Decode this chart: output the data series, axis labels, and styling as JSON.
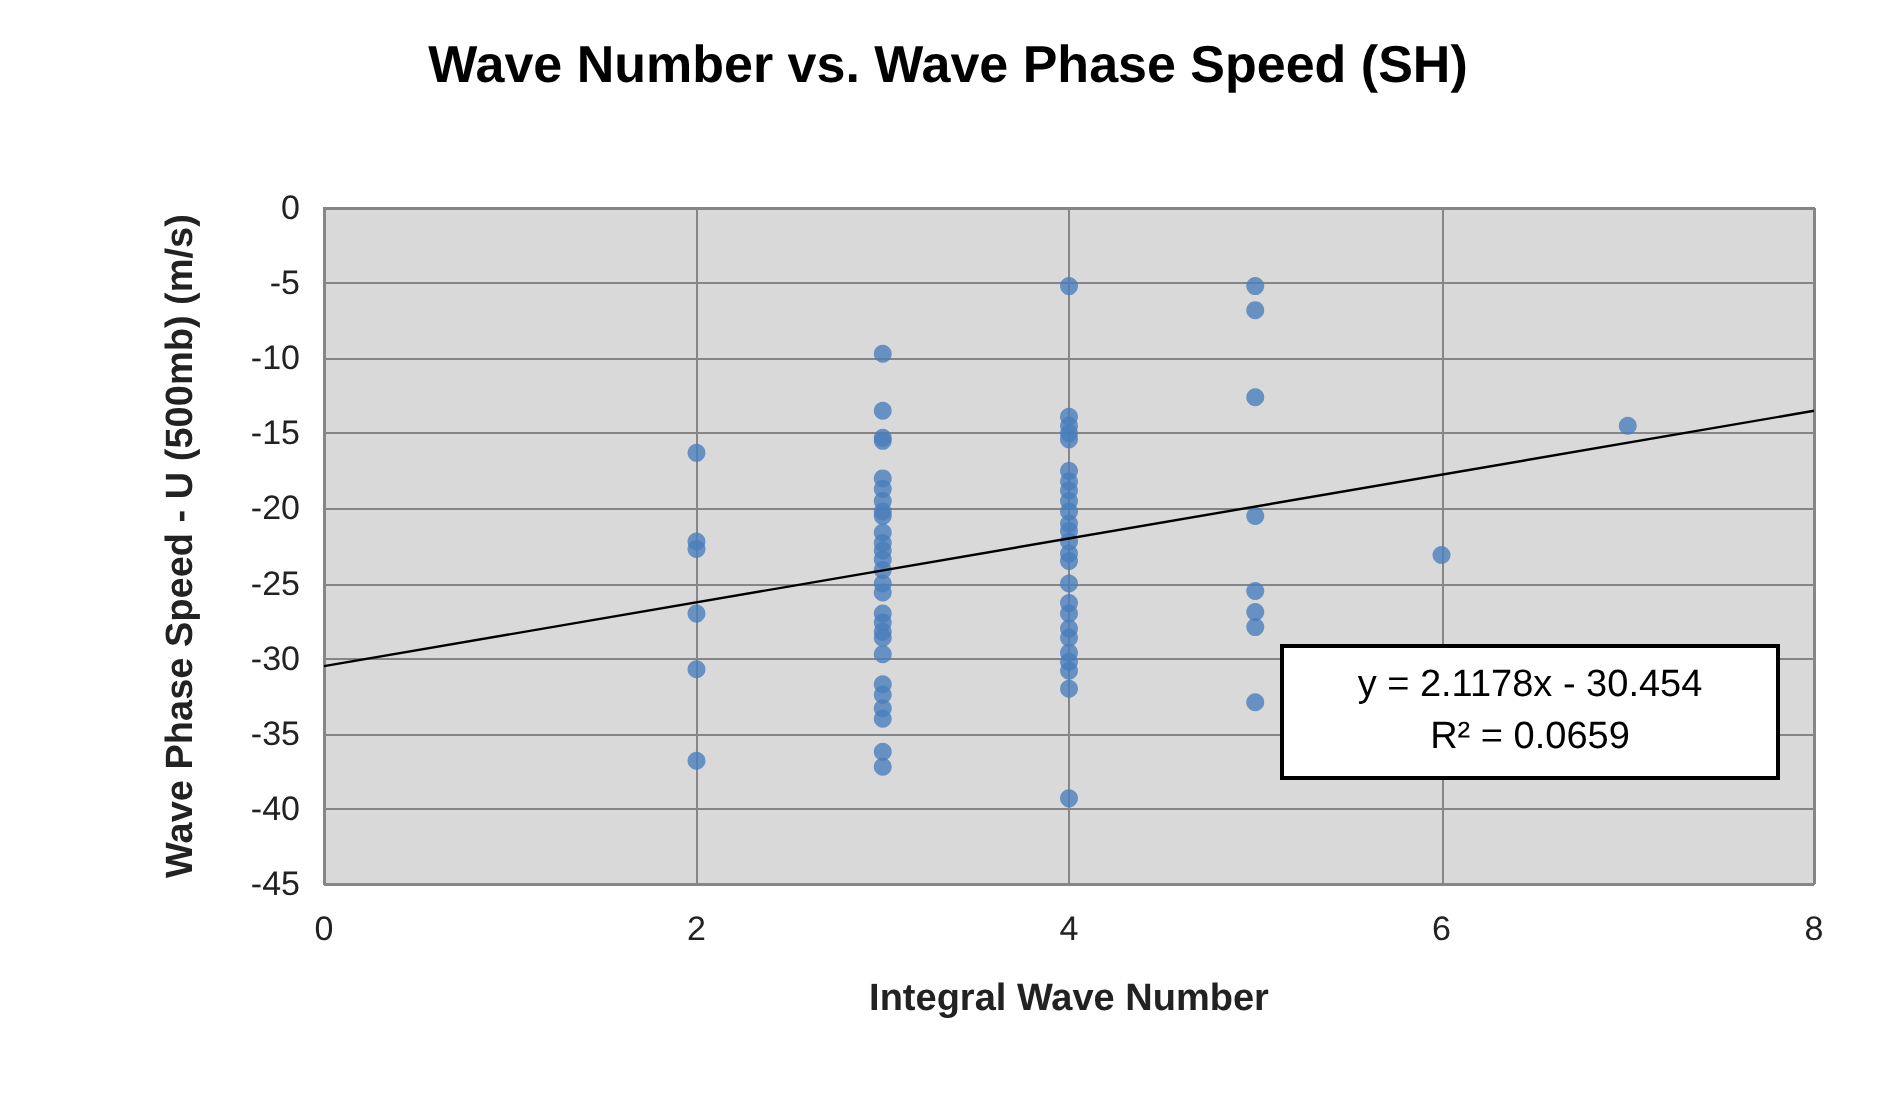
{
  "chart_data": {
    "type": "scatter",
    "title": "Wave Number vs. Wave Phase Speed (SH)",
    "xlabel": "Integral Wave Number",
    "ylabel": "Wave Phase Speed - U (500mb) (m/s)",
    "xlim": [
      0,
      8
    ],
    "xticks": [
      0,
      2,
      4,
      6,
      8
    ],
    "ylim": [
      -45,
      0
    ],
    "yticks": [
      -45,
      -40,
      -35,
      -30,
      -25,
      -20,
      -15,
      -10,
      -5,
      0
    ],
    "grid": true,
    "marker": "circle",
    "annotations": [
      "y = 2.1178x - 30.454",
      "R² = 0.0659"
    ],
    "series": [
      {
        "color": "#4a7ebb",
        "x": [
          2,
          2,
          2,
          2,
          2,
          2,
          3,
          3,
          3,
          3,
          3,
          3,
          3,
          3,
          3,
          3,
          3,
          3,
          3,
          3,
          3,
          3,
          3,
          3,
          3,
          3,
          3,
          3,
          3,
          3,
          3,
          3,
          3,
          4,
          4,
          4,
          4,
          4,
          4,
          4,
          4,
          4,
          4,
          4,
          4,
          4,
          4,
          4,
          4,
          4,
          4,
          4,
          4,
          4,
          4,
          4,
          4,
          4,
          5,
          5,
          5,
          5,
          5,
          5,
          5,
          5,
          6,
          7
        ],
        "values": [
          -16.3,
          -22.2,
          -22.7,
          -27,
          -30.7,
          -36.8,
          -9.7,
          -13.5,
          -15.3,
          -15.5,
          -18,
          -18.7,
          -19.5,
          -20.2,
          -20.5,
          -21.6,
          -22.3,
          -22.8,
          -23.4,
          -24.1,
          -25,
          -25.6,
          -27,
          -27.6,
          -28.2,
          -28.6,
          -29.7,
          -31.7,
          -32.4,
          -33.3,
          -34,
          -36.2,
          -37.2,
          -5.2,
          -13.9,
          -14.5,
          -15,
          -15.4,
          -17.5,
          -18.2,
          -18.8,
          -19.5,
          -20.2,
          -21,
          -21.5,
          -22.2,
          -23,
          -23.5,
          -25,
          -26.3,
          -27,
          -28,
          -28.6,
          -29.6,
          -30.2,
          -30.8,
          -32,
          -39.3,
          -5.2,
          -6.8,
          -12.6,
          -20.5,
          -25.5,
          -26.9,
          -27.9,
          -32.9,
          -23.1,
          -14.5
        ]
      },
      {
        "type": "line",
        "color": "#000000",
        "marker": "none",
        "x": [
          0,
          8
        ],
        "values": [
          -30.5,
          -13.5
        ]
      }
    ]
  }
}
